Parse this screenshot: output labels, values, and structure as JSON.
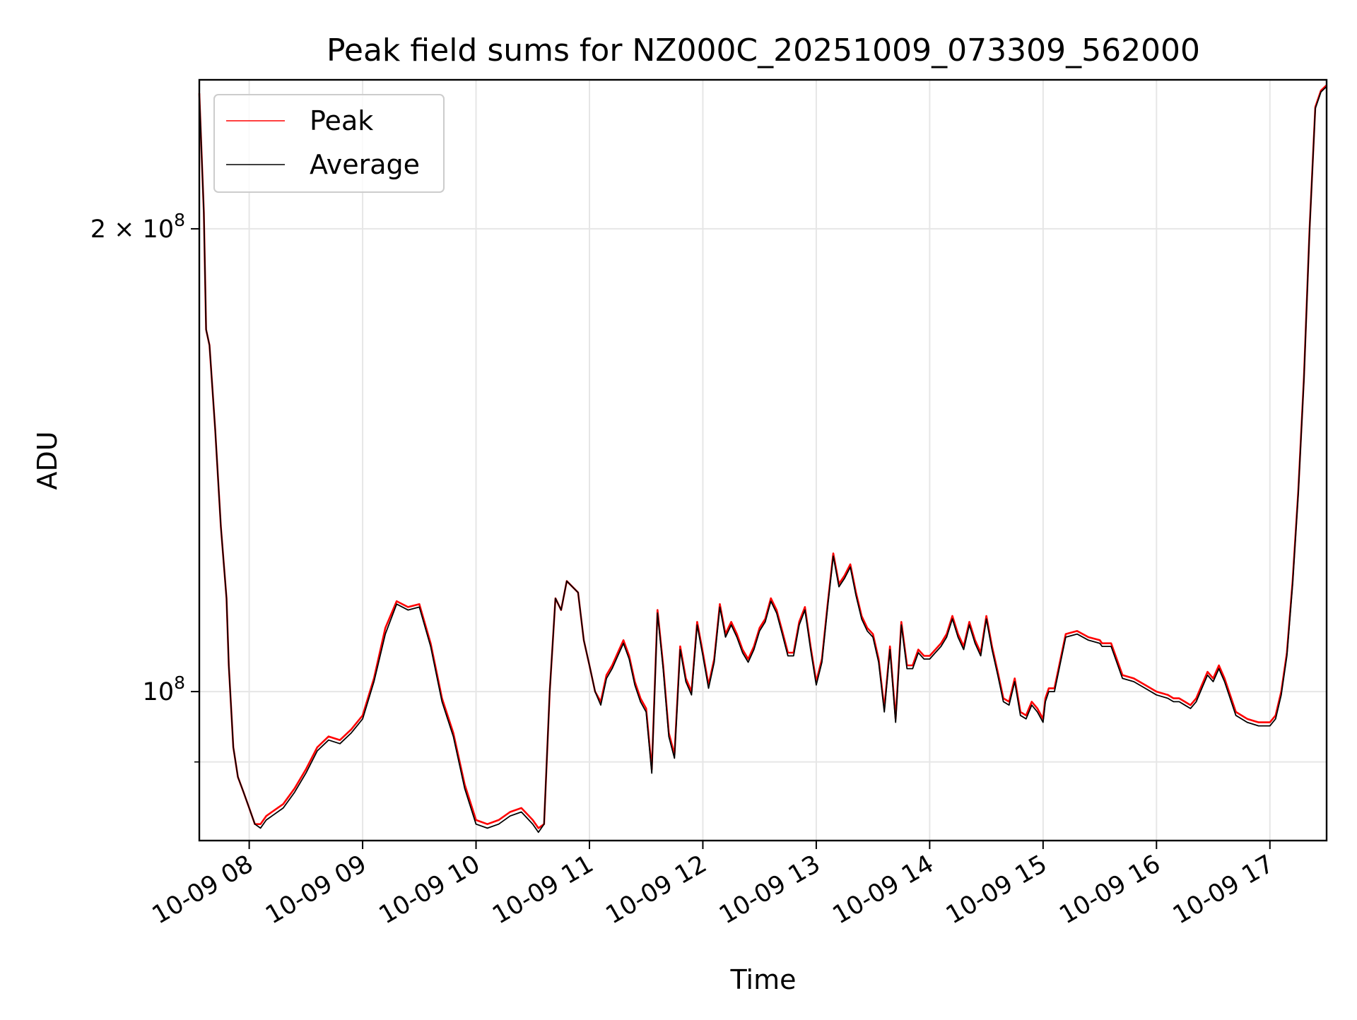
{
  "chart_data": {
    "type": "line",
    "title": "Peak field sums for NZ000C_20251009_073309_562000",
    "xlabel": "Time",
    "ylabel": "ADU",
    "yscale": "log",
    "ylim": [
      80000000,
      250000000
    ],
    "xlim": [
      7.56,
      17.5
    ],
    "grid": true,
    "legend_position": "upper-left",
    "x_ticks": [
      {
        "value": 8,
        "label": "10-09 08"
      },
      {
        "value": 9,
        "label": "10-09 09"
      },
      {
        "value": 10,
        "label": "10-09 10"
      },
      {
        "value": 11,
        "label": "10-09 11"
      },
      {
        "value": 12,
        "label": "10-09 12"
      },
      {
        "value": 13,
        "label": "10-09 13"
      },
      {
        "value": 14,
        "label": "10-09 14"
      },
      {
        "value": 15,
        "label": "10-09 15"
      },
      {
        "value": 16,
        "label": "10-09 16"
      },
      {
        "value": 17,
        "label": "10-09 17"
      }
    ],
    "y_major_ticks": [
      {
        "value": 100000000,
        "base": "10",
        "exp": "8"
      },
      {
        "value": 200000000,
        "base": "2 × 10",
        "exp": "8"
      }
    ],
    "y_minor_ticks": [
      90000000
    ],
    "x": [
      7.56,
      7.6,
      7.62,
      7.65,
      7.7,
      7.75,
      7.8,
      7.82,
      7.86,
      7.9,
      7.95,
      8.0,
      8.05,
      8.1,
      8.15,
      8.2,
      8.3,
      8.4,
      8.5,
      8.6,
      8.7,
      8.8,
      8.9,
      9.0,
      9.1,
      9.2,
      9.3,
      9.4,
      9.5,
      9.6,
      9.7,
      9.8,
      9.9,
      10.0,
      10.1,
      10.2,
      10.3,
      10.4,
      10.5,
      10.55,
      10.6,
      10.65,
      10.7,
      10.75,
      10.8,
      10.85,
      10.9,
      10.95,
      11.0,
      11.05,
      11.1,
      11.15,
      11.2,
      11.25,
      11.3,
      11.35,
      11.4,
      11.45,
      11.5,
      11.55,
      11.6,
      11.65,
      11.7,
      11.75,
      11.8,
      11.85,
      11.9,
      11.95,
      12.0,
      12.05,
      12.1,
      12.15,
      12.2,
      12.25,
      12.3,
      12.35,
      12.4,
      12.45,
      12.5,
      12.55,
      12.6,
      12.65,
      12.7,
      12.75,
      12.8,
      12.85,
      12.9,
      12.95,
      13.0,
      13.05,
      13.1,
      13.15,
      13.2,
      13.25,
      13.3,
      13.35,
      13.4,
      13.45,
      13.5,
      13.55,
      13.6,
      13.65,
      13.7,
      13.75,
      13.8,
      13.85,
      13.9,
      13.95,
      14.0,
      14.05,
      14.1,
      14.15,
      14.2,
      14.25,
      14.3,
      14.35,
      14.4,
      14.45,
      14.5,
      14.55,
      14.6,
      14.65,
      14.7,
      14.75,
      14.8,
      14.85,
      14.9,
      14.95,
      15.0,
      15.02,
      15.05,
      15.1,
      15.2,
      15.3,
      15.4,
      15.5,
      15.52,
      15.6,
      15.7,
      15.8,
      15.9,
      16.0,
      16.1,
      16.15,
      16.2,
      16.25,
      16.3,
      16.35,
      16.4,
      16.45,
      16.5,
      16.55,
      16.6,
      16.7,
      16.8,
      16.9,
      17.0,
      17.05,
      17.1,
      17.15,
      17.2,
      17.25,
      17.3,
      17.35,
      17.4,
      17.45,
      17.5
    ],
    "series": [
      {
        "name": "Peak",
        "color": "#ff0000",
        "values": [
          245000000,
          205000000,
          172000000,
          168000000,
          148000000,
          128000000,
          115000000,
          104000000,
          92000000,
          88000000,
          86000000,
          84000000,
          82000000,
          82000000,
          83000000,
          83500000,
          84500000,
          86500000,
          89000000,
          92000000,
          93500000,
          93000000,
          94500000,
          96500000,
          102000000,
          110000000,
          114500000,
          113500000,
          114000000,
          107500000,
          99000000,
          94000000,
          87000000,
          82500000,
          82000000,
          82500000,
          83500000,
          84000000,
          82500000,
          81500000,
          82000000,
          100000000,
          115000000,
          113000000,
          118000000,
          117000000,
          116000000,
          108000000,
          104000000,
          100000000,
          98500000,
          102500000,
          104000000,
          106000000,
          108000000,
          105500000,
          101500000,
          99000000,
          97500000,
          89000000,
          113000000,
          104000000,
          94000000,
          91000000,
          107000000,
          102000000,
          100000000,
          111000000,
          106000000,
          101000000,
          105000000,
          114000000,
          109000000,
          111000000,
          109000000,
          106500000,
          105000000,
          107000000,
          110000000,
          111500000,
          115000000,
          113000000,
          109500000,
          106000000,
          106000000,
          111000000,
          113500000,
          107000000,
          101500000,
          105000000,
          114000000,
          123000000,
          117500000,
          119000000,
          121000000,
          116000000,
          112000000,
          110000000,
          109000000,
          105000000,
          97500000,
          107000000,
          96000000,
          111000000,
          104000000,
          104000000,
          106500000,
          105500000,
          105500000,
          106500000,
          107500000,
          109000000,
          112000000,
          109000000,
          107000000,
          111000000,
          108000000,
          106000000,
          112000000,
          107000000,
          103000000,
          99000000,
          98500000,
          102000000,
          97000000,
          96500000,
          98500000,
          97500000,
          96000000,
          99000000,
          100500000,
          100500000,
          109000000,
          109500000,
          108500000,
          108000000,
          107500000,
          107500000,
          102500000,
          102000000,
          101000000,
          100000000,
          99500000,
          99000000,
          99000000,
          98500000,
          98000000,
          99000000,
          101000000,
          103000000,
          102000000,
          104000000,
          102000000,
          97000000,
          96000000,
          95500000,
          95500000,
          96500000,
          100000000,
          106000000,
          118000000,
          135000000,
          160000000,
          200000000,
          240000000,
          246000000,
          248000000
        ]
      },
      {
        "name": "Average",
        "color": "#000000",
        "values": [
          245000000,
          205000000,
          172000000,
          168000000,
          148000000,
          128000000,
          115000000,
          104000000,
          92000000,
          88000000,
          86000000,
          84000000,
          82000000,
          81500000,
          82500000,
          83000000,
          84000000,
          86000000,
          88500000,
          91500000,
          93000000,
          92500000,
          94000000,
          96000000,
          101500000,
          109000000,
          114000000,
          113000000,
          113500000,
          107000000,
          98500000,
          93500000,
          86500000,
          82000000,
          81500000,
          82000000,
          83000000,
          83500000,
          82000000,
          81000000,
          82000000,
          100000000,
          115000000,
          113000000,
          118000000,
          117000000,
          116000000,
          108000000,
          104000000,
          100000000,
          98000000,
          102000000,
          103500000,
          105500000,
          107500000,
          105000000,
          101000000,
          98500000,
          97000000,
          88500000,
          112500000,
          103500000,
          93500000,
          90500000,
          106500000,
          101500000,
          99500000,
          110500000,
          105500000,
          100500000,
          104500000,
          113500000,
          108500000,
          110500000,
          108500000,
          106000000,
          104500000,
          106500000,
          109500000,
          111000000,
          114500000,
          112500000,
          109000000,
          105500000,
          105500000,
          110500000,
          113000000,
          106500000,
          101000000,
          104500000,
          113500000,
          122500000,
          117000000,
          118500000,
          120500000,
          115500000,
          111500000,
          109500000,
          108500000,
          104500000,
          97000000,
          106500000,
          95500000,
          110500000,
          103500000,
          103500000,
          106000000,
          105000000,
          105000000,
          106000000,
          107000000,
          108500000,
          111500000,
          108500000,
          106500000,
          110500000,
          107500000,
          105500000,
          111500000,
          106500000,
          102500000,
          98500000,
          98000000,
          101500000,
          96500000,
          96000000,
          98000000,
          97000000,
          95500000,
          98500000,
          100000000,
          100000000,
          108500000,
          109000000,
          108000000,
          107500000,
          107000000,
          107000000,
          102000000,
          101500000,
          100500000,
          99500000,
          99000000,
          98500000,
          98500000,
          98000000,
          97500000,
          98500000,
          100500000,
          102500000,
          101500000,
          103500000,
          101500000,
          96500000,
          95500000,
          95000000,
          95000000,
          96000000,
          99500000,
          105500000,
          117500000,
          134500000,
          159500000,
          199500000,
          239500000,
          245500000,
          247500000
        ]
      }
    ]
  }
}
